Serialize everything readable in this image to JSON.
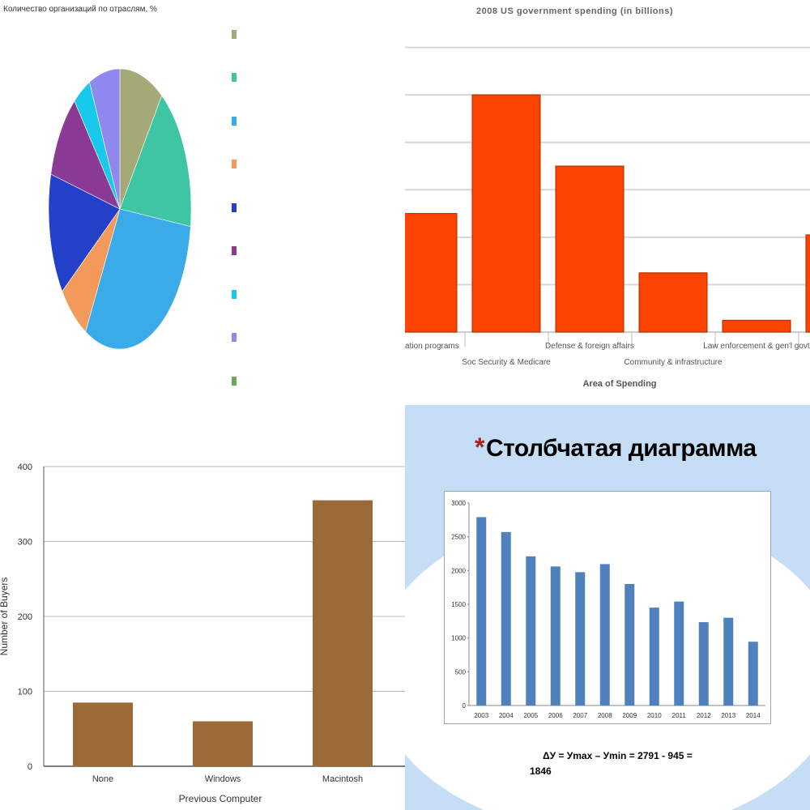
{
  "colors": {
    "pie": [
      "#a4a978",
      "#3dc5a4",
      "#3aaae8",
      "#f39a5b",
      "#2440c8",
      "#8a3a95",
      "#18c9ec",
      "#8f88ee",
      "#6ea95a"
    ],
    "spend_bar": "#fb4304",
    "buyers_bar": "#9c6a38",
    "slide_bar": "#4f81bd",
    "slide_bg": "#c5def5",
    "star": "#b01e1e"
  },
  "chart_data": [
    {
      "type": "pie",
      "title": "Количество организаций по отраслям, %",
      "series": [
        {
          "name": "",
          "value": 10
        },
        {
          "name": "",
          "value": 17
        },
        {
          "name": "",
          "value": 31
        },
        {
          "name": "",
          "value": 7
        },
        {
          "name": "",
          "value": 14
        },
        {
          "name": "",
          "value": 10
        },
        {
          "name": "",
          "value": 4
        },
        {
          "name": "",
          "value": 7
        },
        {
          "name": "",
          "value": 0
        }
      ],
      "legend_position": "right"
    },
    {
      "type": "bar",
      "title": "2008 US government spending (in billions)",
      "categories": [
        "Education programs",
        "Soc Security & Medicare",
        "Defense & foreign affairs",
        "Community & infrastructure",
        "Law enforcement & gen'l govt",
        ""
      ],
      "values": [
        250,
        500,
        350,
        125,
        25,
        205
      ],
      "xlabel": "Area of Spending",
      "ylim": [
        0,
        700
      ],
      "grid": true
    },
    {
      "type": "bar",
      "title": "",
      "categories": [
        "None",
        "Windows",
        "Macintosh"
      ],
      "values": [
        85,
        60,
        355
      ],
      "xlabel": "Previous Computer",
      "ylabel": "Number of Buyers",
      "ylim": [
        0,
        400
      ],
      "yticks": [
        "0",
        "100",
        "200",
        "300",
        "400"
      ],
      "grid": true
    },
    {
      "type": "bar",
      "title": "",
      "categories": [
        "2003",
        "2004",
        "2005",
        "2006",
        "2007",
        "2008",
        "2009",
        "2010",
        "2011",
        "2012",
        "2013",
        "2014"
      ],
      "values": [
        2791,
        2570,
        2210,
        2060,
        1975,
        2095,
        1800,
        1450,
        1540,
        1235,
        1300,
        945
      ],
      "ylim": [
        0,
        3000
      ],
      "yticks": [
        "0",
        "500",
        "1000",
        "1500",
        "2000",
        "2500",
        "3000"
      ],
      "grid": false
    }
  ],
  "slide": {
    "star": "*",
    "heading": "Столбчатая диаграмма",
    "formula_line1": "ΔУ = Уmax – Уmin = 2791 - 945 =",
    "formula_line2": "1846"
  }
}
